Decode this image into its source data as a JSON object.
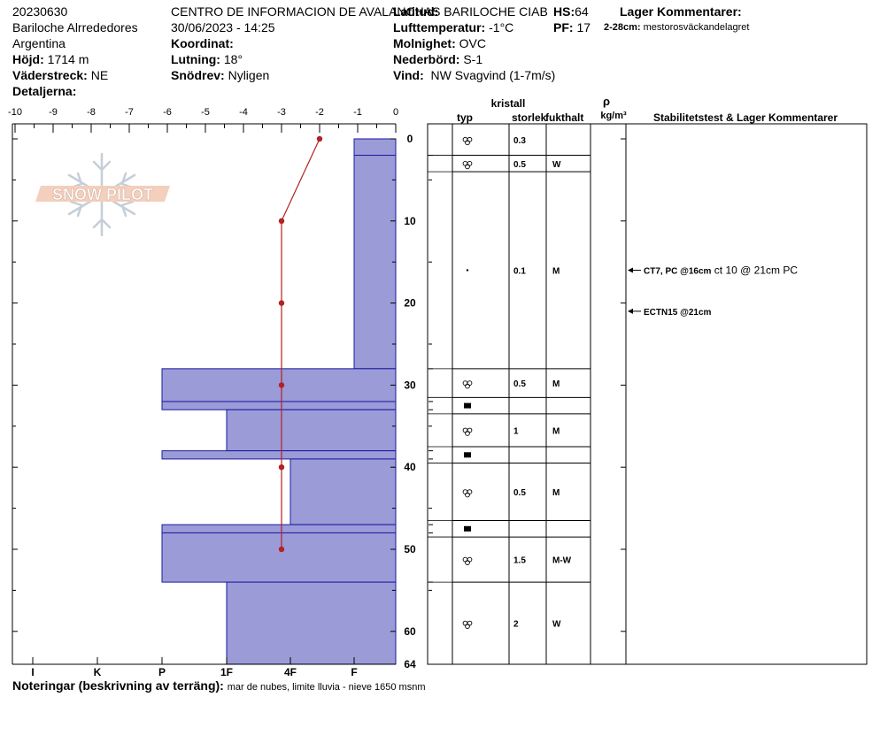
{
  "header": {
    "col1": {
      "date": "20230630",
      "location": "Bariloche Alrrededores",
      "country": "Argentina",
      "elevation_label": "Höjd:",
      "elevation": "1714 m",
      "aspect_label": "Väderstreck:",
      "aspect": "NE",
      "details_label": "Detaljerna:"
    },
    "col2": {
      "organization": "CENTRO DE INFORMACION DE AVALANCHAS BARILOCHE CIAB",
      "datetime": "30/06/2023 - 14:25",
      "coordinate_label": "Koordinat:",
      "slope_label": "Lutning:",
      "slope": "18°",
      "drift_label": "Snödrev:",
      "drift": "Nyligen"
    },
    "col3": {
      "latitude_label": "Latitud:",
      "air_temp_label": "Lufttemperatur:",
      "air_temp": "-1°C",
      "sky_label": "Molnighet:",
      "sky": "OVC",
      "precip_label": "Nederbörd:",
      "precip": "S-1",
      "wind_label": "Vind:",
      "wind": "NW Svagvind (1-7m/s)"
    },
    "col4": {
      "hs_label": "HS:",
      "hs": "64",
      "pf_label": "PF:",
      "pf": "17"
    },
    "col5": {
      "layer_comments_label": "Lager Kommentarer:",
      "comment_depth": "2-28cm:",
      "comment_text": "mestorosväckandelagret"
    }
  },
  "logo_text": "SNOW PILOT",
  "notes": {
    "label": "Noteringar (beskrivning av terräng):",
    "text": "mar de nubes, limite lluvia - nieve 1650 msnm"
  },
  "colors": {
    "hardness_fill": "#9b9bd8",
    "hardness_stroke": "#1a1aa0",
    "temp_line": "#b22222"
  },
  "chart_data": {
    "type": "snow_profile",
    "temperature_axis": {
      "ticks": [
        "-10",
        "-9",
        "-8",
        "-7",
        "-6",
        "-5",
        "-4",
        "-3",
        "-2",
        "-1",
        "0"
      ],
      "range": [
        -10,
        0
      ]
    },
    "hardness_axis": {
      "ticks": [
        "I",
        "K",
        "P",
        "1F",
        "4F",
        "F"
      ]
    },
    "depth_axis": {
      "ticks": [
        "0",
        "10",
        "20",
        "30",
        "40",
        "50",
        "60",
        "64"
      ],
      "range": [
        0,
        64
      ]
    },
    "hardness_layers": [
      {
        "top": 0,
        "bottom": 2,
        "hardness": "F"
      },
      {
        "top": 2,
        "bottom": 28,
        "hardness": "F"
      },
      {
        "top": 28,
        "bottom": 32,
        "hardness": "P"
      },
      {
        "top": 32,
        "bottom": 33,
        "hardness": "P"
      },
      {
        "top": 33,
        "bottom": 38,
        "hardness": "1F"
      },
      {
        "top": 38,
        "bottom": 39,
        "hardness": "P"
      },
      {
        "top": 39,
        "bottom": 47,
        "hardness": "4F"
      },
      {
        "top": 47,
        "bottom": 48,
        "hardness": "P"
      },
      {
        "top": 48,
        "bottom": 54,
        "hardness": "P"
      },
      {
        "top": 54,
        "bottom": 64,
        "hardness": "1F"
      }
    ],
    "temperature_profile": [
      {
        "depth": 0,
        "temp": -2.0
      },
      {
        "depth": 10,
        "temp": -3.0
      },
      {
        "depth": 20,
        "temp": -3.0
      },
      {
        "depth": 30,
        "temp": -3.0
      },
      {
        "depth": 40,
        "temp": -3.0
      },
      {
        "depth": 50,
        "temp": -3.0
      }
    ],
    "table": {
      "headers": {
        "crystal": "kristall",
        "type": "typ",
        "size": "storlek",
        "moisture": "fukthalt",
        "rho": "ρ",
        "density_unit": "kg/m³",
        "stability": "Stabilitetstest & Lager Kommentarer"
      },
      "rows": [
        {
          "top": 0,
          "bottom": 2,
          "form": "rounded",
          "size": "0.3",
          "moisture": ""
        },
        {
          "top": 2,
          "bottom": 4,
          "form": "rounded",
          "size": "0.5",
          "moisture": "W"
        },
        {
          "top": 4,
          "bottom": 28,
          "form": "dot",
          "size": "0.1",
          "moisture": "M"
        },
        {
          "top": 28,
          "bottom": 31.5,
          "form": "rounded",
          "size": "0.5",
          "moisture": "M"
        },
        {
          "top": 31.5,
          "bottom": 33.5,
          "form": "crust",
          "size": "",
          "moisture": ""
        },
        {
          "top": 33.5,
          "bottom": 37.5,
          "form": "rounded",
          "size": "1",
          "moisture": "M"
        },
        {
          "top": 37.5,
          "bottom": 39.5,
          "form": "crust",
          "size": "",
          "moisture": ""
        },
        {
          "top": 39.5,
          "bottom": 46.5,
          "form": "rounded",
          "size": "0.5",
          "moisture": "M"
        },
        {
          "top": 46.5,
          "bottom": 48.5,
          "form": "crust",
          "size": "",
          "moisture": ""
        },
        {
          "top": 48.5,
          "bottom": 54,
          "form": "rounded",
          "size": "1.5",
          "moisture": "M-W"
        },
        {
          "top": 54,
          "bottom": 64,
          "form": "rounded",
          "size": "2",
          "moisture": "W"
        }
      ],
      "layer_depth_ticks": [
        2,
        28,
        32,
        33,
        38,
        39,
        47,
        48,
        54
      ],
      "stability_tests": [
        {
          "depth": 16,
          "label": "CT7, PC @16cm",
          "comment": "ct 10 @ 21cm PC"
        },
        {
          "depth": 21,
          "label": "ECTN15 @21cm",
          "comment": ""
        }
      ]
    }
  }
}
